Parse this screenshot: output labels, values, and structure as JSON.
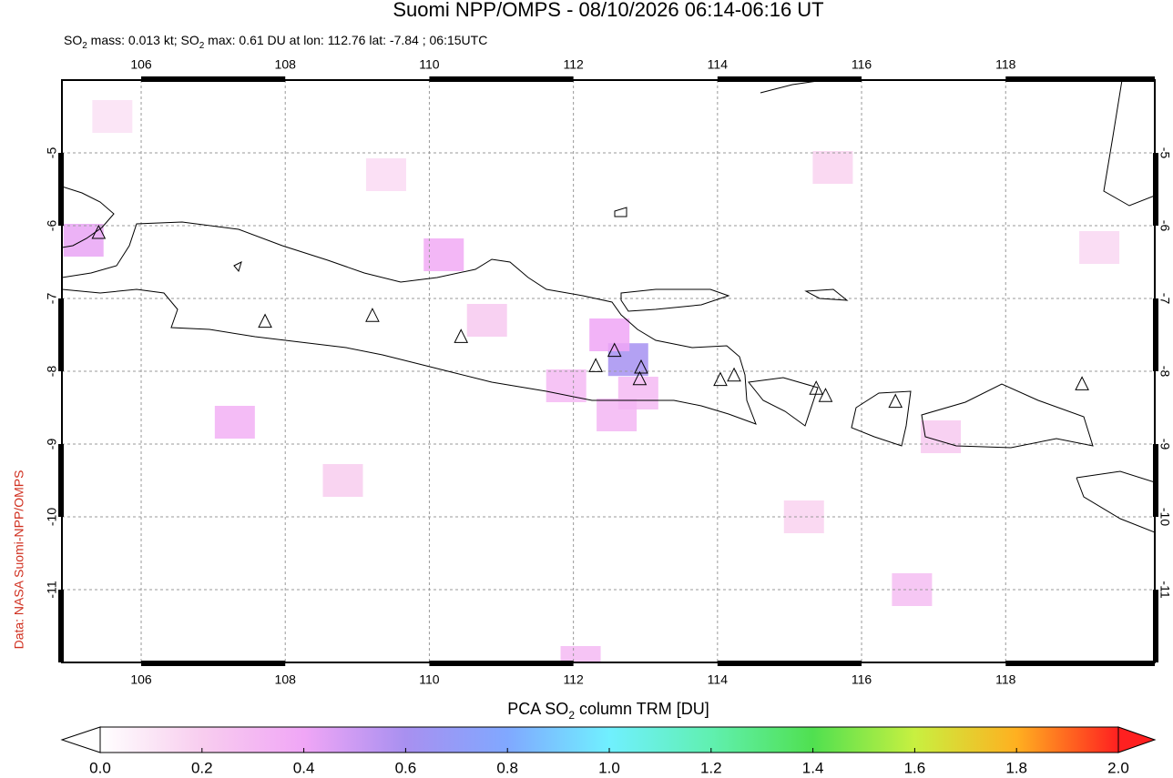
{
  "chart_data": {
    "type": "map",
    "title": "Suomi NPP/OMPS - 08/10/2026 06:14-06:16 UT",
    "subtitle": [
      "SO",
      "2",
      " mass: 0.013 kt; SO",
      "2",
      " max: 0.61 DU at lon: 112.76 lat: -7.84 ; 06:15UTC"
    ],
    "credit": "Data: NASA Suomi-NPP/OMPS",
    "xlim": [
      104.9,
      120.07
    ],
    "ylim": [
      -12,
      -4
    ],
    "xticks": [
      106,
      108,
      110,
      112,
      114,
      116,
      118
    ],
    "yticks": [
      -5,
      -6,
      -7,
      -8,
      -9,
      -10,
      -11
    ],
    "grid": true,
    "volcanoes": {
      "lon": [
        105.41,
        107.72,
        109.21,
        110.44,
        112.31,
        112.57,
        112.94,
        112.92,
        114.04,
        114.23,
        115.37,
        115.5,
        116.47,
        119.06
      ],
      "lat": [
        -6.1,
        -7.32,
        -7.24,
        -7.53,
        -7.93,
        -7.72,
        -7.95,
        -8.11,
        -8.12,
        -8.06,
        -8.24,
        -8.34,
        -8.42,
        -8.18
      ]
    },
    "pixels": {
      "lon": [
        112.76,
        112.5,
        112.9,
        110.2,
        105.2,
        107.3,
        112.6,
        111.9,
        115.6,
        117.1,
        119.3,
        116.7,
        109.4,
        108.8,
        105.6,
        112.1,
        115.2,
        110.8
      ],
      "lat": [
        -7.84,
        -7.5,
        -8.3,
        -6.4,
        -6.2,
        -8.7,
        -8.6,
        -8.2,
        -5.2,
        -8.9,
        -6.3,
        -11.0,
        -5.3,
        -9.5,
        -4.5,
        -12.0,
        -10.0,
        -7.3
      ],
      "values": [
        0.61,
        0.4,
        0.3,
        0.38,
        0.42,
        0.35,
        0.32,
        0.3,
        0.18,
        0.22,
        0.16,
        0.28,
        0.15,
        0.2,
        0.12,
        0.3,
        0.18,
        0.22
      ]
    },
    "colorbar": {
      "label": [
        "PCA SO",
        "2",
        " column TRM [DU]"
      ],
      "clim": [
        0,
        2
      ],
      "ticks": [
        {
          "value": 0,
          "label": "0.0"
        },
        0.2,
        0.4,
        0.6,
        0.8,
        {
          "value": 1,
          "label": "1.0"
        },
        1.2,
        1.4,
        1.6,
        1.8,
        {
          "value": 2,
          "label": "2.0"
        }
      ]
    }
  }
}
